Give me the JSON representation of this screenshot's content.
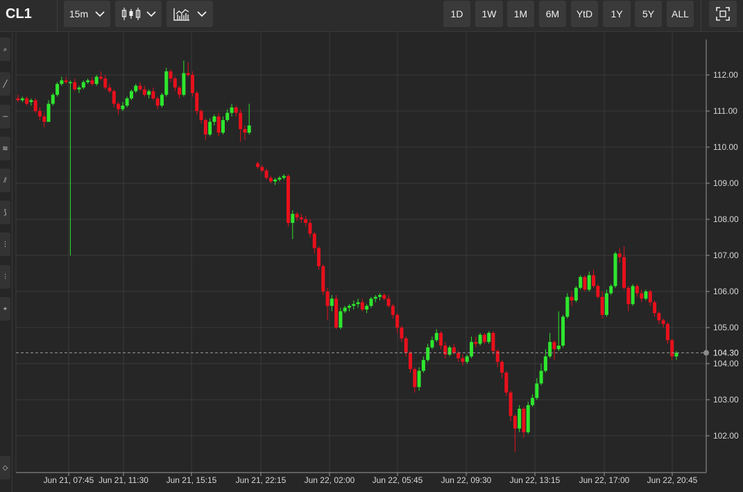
{
  "header": {
    "symbol": "CL1",
    "interval_label": "15m",
    "range_buttons": [
      "1D",
      "1W",
      "1M",
      "6M",
      "YtD",
      "1Y",
      "5Y",
      "ALL"
    ]
  },
  "chart_data": {
    "type": "candlestick",
    "y_ticks": [
      "112.00",
      "111.00",
      "110.00",
      "109.00",
      "108.00",
      "107.00",
      "106.00",
      "105.00",
      "104.00",
      "103.00",
      "102.00"
    ],
    "x_tick_labels": [
      "Jun 21, 07:45",
      "Jun 21, 11:30",
      "Jun 21, 15:15",
      "Jun 21, 22:15",
      "Jun 22, 02:00",
      "Jun 22, 05:45",
      "Jun 22, 09:30",
      "Jun 22, 13:15",
      "Jun 22, 17:00",
      "Jun 22, 20:45"
    ],
    "ylim": [
      101.0,
      112.9
    ],
    "last_price": 104.3,
    "last_price_label": "104.30",
    "colors": {
      "up": "#2ee62e",
      "down": "#e8101c",
      "grid": "#3a3a3a",
      "background": "#262626"
    },
    "candles": [
      [
        111.35,
        111.45,
        111.25,
        111.3
      ],
      [
        111.3,
        111.4,
        111.25,
        111.35
      ],
      [
        111.35,
        111.4,
        111.15,
        111.2
      ],
      [
        111.25,
        111.35,
        111.15,
        111.3
      ],
      [
        111.3,
        111.35,
        110.95,
        111.0
      ],
      [
        111.0,
        111.1,
        110.75,
        110.85
      ],
      [
        110.85,
        110.95,
        110.55,
        110.7
      ],
      [
        110.7,
        111.3,
        110.7,
        111.2
      ],
      [
        111.2,
        111.5,
        111.15,
        111.45
      ],
      [
        111.45,
        111.8,
        111.4,
        111.75
      ],
      [
        111.75,
        111.95,
        111.7,
        111.85
      ],
      [
        111.85,
        111.95,
        111.75,
        111.8
      ],
      [
        111.8,
        111.85,
        107.0,
        111.8
      ],
      [
        111.8,
        111.9,
        111.55,
        111.6
      ],
      [
        111.6,
        111.7,
        111.5,
        111.65
      ],
      [
        111.65,
        111.85,
        111.6,
        111.8
      ],
      [
        111.8,
        111.9,
        111.75,
        111.85
      ],
      [
        111.85,
        111.95,
        111.7,
        111.75
      ],
      [
        111.75,
        112.0,
        111.7,
        111.95
      ],
      [
        111.95,
        112.1,
        111.85,
        111.9
      ],
      [
        111.9,
        112.0,
        111.6,
        111.65
      ],
      [
        111.65,
        111.75,
        111.5,
        111.55
      ],
      [
        111.55,
        111.6,
        111.1,
        111.2
      ],
      [
        111.2,
        111.25,
        110.9,
        111.05
      ],
      [
        111.05,
        111.25,
        111.0,
        111.15
      ],
      [
        111.15,
        111.4,
        111.1,
        111.35
      ],
      [
        111.35,
        111.6,
        111.3,
        111.55
      ],
      [
        111.55,
        111.75,
        111.5,
        111.7
      ],
      [
        111.7,
        111.8,
        111.55,
        111.6
      ],
      [
        111.6,
        111.7,
        111.4,
        111.45
      ],
      [
        111.45,
        111.6,
        111.35,
        111.55
      ],
      [
        111.55,
        111.65,
        111.3,
        111.35
      ],
      [
        111.35,
        111.4,
        111.05,
        111.15
      ],
      [
        111.15,
        111.5,
        111.1,
        111.45
      ],
      [
        111.45,
        112.2,
        111.4,
        112.1
      ],
      [
        112.1,
        112.15,
        111.8,
        111.9
      ],
      [
        111.9,
        111.95,
        111.55,
        111.65
      ],
      [
        111.65,
        111.7,
        111.35,
        111.45
      ],
      [
        111.45,
        112.4,
        111.4,
        112.05
      ],
      [
        112.05,
        112.35,
        111.95,
        112.0
      ],
      [
        112.0,
        112.1,
        111.4,
        111.5
      ],
      [
        111.5,
        111.55,
        110.9,
        111.0
      ],
      [
        111.0,
        111.05,
        110.65,
        110.75
      ],
      [
        110.75,
        110.8,
        110.2,
        110.35
      ],
      [
        110.35,
        110.8,
        110.3,
        110.7
      ],
      [
        110.7,
        110.9,
        110.6,
        110.85
      ],
      [
        110.85,
        110.95,
        110.3,
        110.4
      ],
      [
        110.4,
        110.85,
        110.35,
        110.75
      ],
      [
        110.75,
        111.05,
        110.7,
        110.95
      ],
      [
        110.95,
        111.2,
        110.85,
        111.1
      ],
      [
        111.1,
        111.15,
        110.85,
        110.95
      ],
      [
        110.95,
        111.05,
        110.15,
        110.5
      ],
      [
        110.5,
        110.6,
        110.2,
        110.4
      ],
      [
        110.4,
        111.2,
        110.35,
        110.6
      ],
      [
        109.55,
        109.6,
        109.4,
        109.45
      ],
      [
        109.45,
        109.5,
        109.3,
        109.35
      ],
      [
        109.35,
        109.4,
        109.1,
        109.15
      ],
      [
        109.15,
        109.2,
        109.0,
        109.05
      ],
      [
        109.05,
        109.15,
        108.95,
        109.1
      ],
      [
        109.1,
        109.2,
        109.05,
        109.15
      ],
      [
        109.15,
        109.25,
        109.1,
        109.2
      ],
      [
        109.2,
        109.25,
        107.8,
        107.9
      ],
      [
        107.9,
        108.25,
        107.45,
        108.15
      ],
      [
        108.15,
        108.2,
        107.95,
        108.05
      ],
      [
        108.05,
        108.15,
        107.9,
        108.0
      ],
      [
        108.0,
        108.1,
        107.8,
        107.9
      ],
      [
        107.9,
        108.0,
        107.5,
        107.6
      ],
      [
        107.6,
        107.65,
        107.05,
        107.2
      ],
      [
        107.2,
        107.25,
        106.6,
        106.7
      ],
      [
        106.7,
        106.75,
        105.9,
        106.0
      ],
      [
        106.0,
        106.1,
        105.2,
        105.6
      ],
      [
        105.6,
        105.9,
        105.45,
        105.8
      ],
      [
        105.8,
        105.9,
        104.95,
        105.0
      ],
      [
        105.0,
        105.55,
        104.95,
        105.45
      ],
      [
        105.45,
        105.6,
        105.4,
        105.55
      ],
      [
        105.55,
        105.65,
        105.45,
        105.6
      ],
      [
        105.6,
        105.75,
        105.5,
        105.65
      ],
      [
        105.65,
        105.8,
        105.55,
        105.7
      ],
      [
        105.7,
        105.8,
        105.45,
        105.5
      ],
      [
        105.5,
        105.65,
        105.4,
        105.6
      ],
      [
        105.6,
        105.85,
        105.55,
        105.8
      ],
      [
        105.8,
        105.9,
        105.7,
        105.85
      ],
      [
        105.85,
        105.95,
        105.75,
        105.9
      ],
      [
        105.9,
        105.95,
        105.75,
        105.8
      ],
      [
        105.8,
        105.9,
        105.55,
        105.6
      ],
      [
        105.6,
        105.65,
        105.25,
        105.35
      ],
      [
        105.35,
        105.4,
        104.85,
        105.0
      ],
      [
        105.0,
        105.05,
        104.6,
        104.7
      ],
      [
        104.7,
        104.75,
        104.2,
        104.3
      ],
      [
        104.3,
        104.35,
        103.75,
        103.85
      ],
      [
        103.85,
        103.9,
        103.2,
        103.35
      ],
      [
        103.35,
        103.9,
        103.25,
        103.8
      ],
      [
        103.8,
        104.2,
        103.75,
        104.1
      ],
      [
        104.1,
        104.55,
        104.05,
        104.45
      ],
      [
        104.45,
        104.75,
        104.4,
        104.65
      ],
      [
        104.65,
        104.95,
        104.6,
        104.85
      ],
      [
        104.85,
        104.9,
        104.4,
        104.5
      ],
      [
        104.5,
        104.6,
        104.15,
        104.25
      ],
      [
        104.25,
        104.5,
        104.2,
        104.45
      ],
      [
        104.45,
        104.55,
        104.25,
        104.3
      ],
      [
        104.3,
        104.35,
        104.05,
        104.15
      ],
      [
        104.15,
        104.25,
        103.95,
        104.05
      ],
      [
        104.05,
        104.25,
        104.0,
        104.2
      ],
      [
        104.2,
        104.75,
        104.15,
        104.6
      ],
      [
        104.6,
        104.75,
        104.45,
        104.55
      ],
      [
        104.55,
        104.85,
        104.5,
        104.8
      ],
      [
        104.8,
        104.85,
        104.55,
        104.6
      ],
      [
        104.6,
        104.9,
        104.55,
        104.85
      ],
      [
        104.85,
        104.9,
        104.25,
        104.35
      ],
      [
        104.35,
        104.4,
        103.9,
        104.05
      ],
      [
        104.05,
        104.1,
        103.6,
        103.75
      ],
      [
        103.75,
        103.8,
        103.1,
        103.2
      ],
      [
        103.2,
        103.25,
        102.4,
        102.55
      ],
      [
        102.55,
        102.6,
        101.55,
        102.2
      ],
      [
        102.2,
        102.85,
        102.1,
        102.75
      ],
      [
        102.75,
        102.8,
        101.95,
        102.1
      ],
      [
        102.1,
        102.95,
        102.05,
        102.85
      ],
      [
        102.85,
        103.15,
        102.8,
        103.05
      ],
      [
        103.05,
        103.6,
        103.0,
        103.45
      ],
      [
        103.45,
        104.0,
        103.4,
        103.8
      ],
      [
        103.8,
        104.4,
        103.75,
        104.2
      ],
      [
        104.2,
        104.85,
        104.15,
        104.6
      ],
      [
        104.6,
        104.65,
        104.1,
        104.4
      ],
      [
        104.4,
        105.45,
        104.35,
        104.5
      ],
      [
        104.5,
        105.35,
        104.45,
        105.3
      ],
      [
        105.3,
        105.95,
        105.25,
        105.85
      ],
      [
        105.85,
        106.0,
        105.6,
        105.75
      ],
      [
        105.75,
        106.15,
        105.7,
        106.1
      ],
      [
        106.1,
        106.45,
        106.05,
        106.4
      ],
      [
        106.4,
        106.45,
        106.0,
        106.05
      ],
      [
        106.05,
        106.55,
        106.0,
        106.45
      ],
      [
        106.45,
        106.6,
        106.1,
        106.15
      ],
      [
        106.15,
        106.2,
        105.8,
        105.85
      ],
      [
        105.85,
        106.0,
        105.25,
        105.35
      ],
      [
        105.35,
        106.05,
        105.3,
        105.95
      ],
      [
        105.95,
        106.2,
        105.9,
        106.15
      ],
      [
        106.15,
        107.1,
        106.1,
        107.05
      ],
      [
        107.05,
        107.2,
        106.8,
        106.95
      ],
      [
        106.95,
        107.25,
        106.05,
        106.1
      ],
      [
        106.1,
        106.15,
        105.45,
        105.65
      ],
      [
        105.65,
        106.2,
        105.6,
        106.15
      ],
      [
        106.15,
        106.2,
        105.85,
        105.95
      ],
      [
        105.95,
        106.05,
        105.7,
        105.8
      ],
      [
        105.8,
        106.05,
        105.75,
        106.0
      ],
      [
        106.0,
        106.05,
        105.6,
        105.7
      ],
      [
        105.7,
        105.75,
        105.3,
        105.4
      ],
      [
        105.4,
        105.45,
        105.1,
        105.2
      ],
      [
        105.2,
        105.25,
        105.0,
        105.1
      ],
      [
        105.1,
        105.15,
        104.55,
        104.65
      ],
      [
        104.65,
        104.7,
        104.1,
        104.2
      ],
      [
        104.2,
        104.35,
        104.1,
        104.3
      ]
    ]
  }
}
